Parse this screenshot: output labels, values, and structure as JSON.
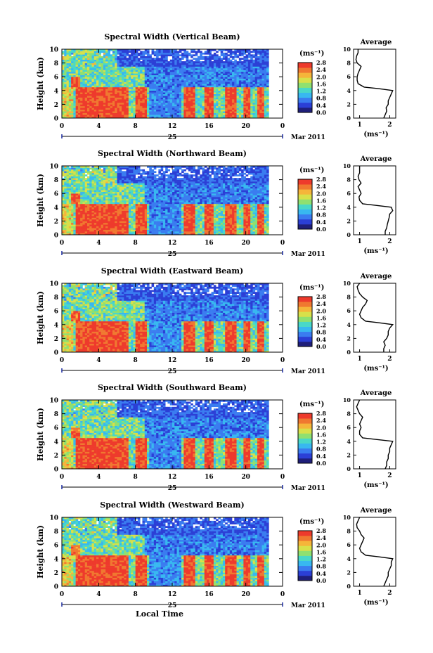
{
  "figure": {
    "xlabel": "Local Time",
    "date_label": "Mar 2011",
    "day_label": "25",
    "colorbar_unit": "(ms⁻¹)",
    "colorbar_ticks": [
      "0.0",
      "0.4",
      "0.8",
      "1.2",
      "1.6",
      "2.0",
      "2.4",
      "2.8"
    ],
    "colormap": [
      "#1f1f7a",
      "#2b3fd6",
      "#3a7cf0",
      "#38b8f0",
      "#49d8c8",
      "#8fe070",
      "#d8e04a",
      "#f5b53a",
      "#f07830",
      "#ee3a2c"
    ]
  },
  "chart_data": [
    {
      "type": "heatmap",
      "title": "Spectral Width (Vertical Beam)",
      "ylabel": "Height (km)",
      "x_ticks": [
        "0",
        "4",
        "8",
        "12",
        "16",
        "20",
        "0"
      ],
      "xlim": [
        0,
        24
      ],
      "y_ticks": [
        "0",
        "2",
        "4",
        "6",
        "8",
        "10"
      ],
      "ylim": [
        0,
        10
      ],
      "zlim": [
        0.0,
        2.8
      ],
      "profile": {
        "title": "Average",
        "xlabel": "(ms⁻¹)",
        "x_ticks": [
          "1",
          "2"
        ],
        "xlim": [
          0.8,
          2.2
        ],
        "height": [
          0,
          0.5,
          1,
          1.5,
          2,
          2.5,
          3,
          3.5,
          4,
          4.3,
          4.5,
          5,
          5.5,
          6,
          6.5,
          7,
          7.5,
          8,
          8.5,
          9,
          9.5,
          10
        ],
        "value": [
          1.8,
          1.85,
          1.9,
          1.88,
          1.95,
          1.95,
          2.0,
          2.05,
          2.1,
          1.6,
          1.15,
          0.95,
          0.92,
          0.92,
          0.95,
          1.0,
          1.05,
          0.92,
          0.88,
          0.9,
          0.95,
          0.95
        ]
      }
    },
    {
      "type": "heatmap",
      "title": "Spectral Width (Northward Beam)",
      "ylabel": "Height (km)",
      "x_ticks": [
        "0",
        "4",
        "8",
        "12",
        "16",
        "20",
        "0"
      ],
      "xlim": [
        0,
        24
      ],
      "y_ticks": [
        "0",
        "2",
        "4",
        "6",
        "8",
        "10"
      ],
      "ylim": [
        0,
        10
      ],
      "zlim": [
        0.0,
        2.8
      ],
      "profile": {
        "title": "Average",
        "xlabel": "(ms⁻¹)",
        "x_ticks": [
          "1",
          "2"
        ],
        "xlim": [
          0.8,
          2.2
        ],
        "height": [
          0,
          0.5,
          1,
          1.5,
          2,
          2.5,
          3,
          3.5,
          4,
          4.3,
          4.5,
          5,
          5.5,
          6,
          6.5,
          7,
          7.5,
          8,
          8.5,
          9,
          9.5,
          10
        ],
        "value": [
          1.85,
          1.85,
          1.9,
          1.92,
          1.95,
          1.98,
          2.0,
          2.1,
          2.05,
          1.5,
          1.1,
          1.0,
          0.98,
          1.05,
          1.0,
          0.95,
          1.05,
          0.98,
          0.95,
          1.0,
          1.0,
          1.0
        ]
      }
    },
    {
      "type": "heatmap",
      "title": "Spectral Width (Eastward Beam)",
      "ylabel": "Height (km)",
      "x_ticks": [
        "0",
        "4",
        "8",
        "12",
        "16",
        "20",
        "0"
      ],
      "xlim": [
        0,
        24
      ],
      "y_ticks": [
        "0",
        "2",
        "4",
        "6",
        "8",
        "10"
      ],
      "ylim": [
        0,
        10
      ],
      "zlim": [
        0.0,
        2.8
      ],
      "profile": {
        "title": "Average",
        "xlabel": "(ms⁻¹)",
        "x_ticks": [
          "1",
          "2"
        ],
        "xlim": [
          0.8,
          2.2
        ],
        "height": [
          0,
          0.5,
          1,
          1.5,
          2,
          2.5,
          3,
          3.5,
          4,
          4.3,
          4.5,
          5,
          5.5,
          6,
          6.5,
          7,
          7.5,
          8,
          8.5,
          9,
          9.5,
          10
        ],
        "value": [
          1.8,
          1.8,
          1.85,
          1.8,
          1.9,
          1.95,
          1.95,
          2.0,
          2.1,
          1.6,
          1.2,
          1.05,
          1.0,
          1.05,
          1.1,
          1.2,
          1.25,
          1.1,
          1.0,
          0.95,
          0.92,
          1.0
        ]
      }
    },
    {
      "type": "heatmap",
      "title": "Spectral Width (Southward Beam)",
      "ylabel": "Height (km)",
      "x_ticks": [
        "0",
        "4",
        "8",
        "12",
        "16",
        "20",
        "0"
      ],
      "xlim": [
        0,
        24
      ],
      "y_ticks": [
        "0",
        "2",
        "4",
        "6",
        "8",
        "10"
      ],
      "ylim": [
        0,
        10
      ],
      "zlim": [
        0.0,
        2.8
      ],
      "profile": {
        "title": "Average",
        "xlabel": "(ms⁻¹)",
        "x_ticks": [
          "1",
          "2"
        ],
        "xlim": [
          0.8,
          2.2
        ],
        "height": [
          0,
          0.5,
          1,
          1.5,
          2,
          2.5,
          3,
          3.5,
          4,
          4.3,
          4.5,
          5,
          5.5,
          6,
          6.5,
          7,
          7.5,
          8,
          8.5,
          9,
          9.5,
          10
        ],
        "value": [
          1.85,
          1.9,
          1.9,
          1.95,
          1.95,
          2.0,
          2.0,
          2.05,
          2.1,
          1.5,
          1.1,
          1.0,
          1.0,
          1.05,
          1.0,
          1.05,
          1.1,
          1.0,
          0.95,
          0.9,
          0.95,
          1.0
        ]
      }
    },
    {
      "type": "heatmap",
      "title": "Spectral Width (Westward Beam)",
      "ylabel": "Height (km)",
      "x_ticks": [
        "0",
        "4",
        "8",
        "12",
        "16",
        "20",
        "0"
      ],
      "xlim": [
        0,
        24
      ],
      "y_ticks": [
        "0",
        "2",
        "4",
        "6",
        "8",
        "10"
      ],
      "ylim": [
        0,
        10
      ],
      "zlim": [
        0.0,
        2.8
      ],
      "profile": {
        "title": "Average",
        "xlabel": "(ms⁻¹)",
        "x_ticks": [
          "1",
          "2"
        ],
        "xlim": [
          0.8,
          2.2
        ],
        "height": [
          0,
          0.5,
          1,
          1.5,
          2,
          2.5,
          3,
          3.5,
          4,
          4.3,
          4.5,
          5,
          5.5,
          6,
          6.5,
          7,
          7.5,
          8,
          8.5,
          9,
          9.5,
          10
        ],
        "value": [
          1.8,
          1.85,
          1.9,
          1.95,
          1.95,
          2.0,
          2.05,
          2.05,
          2.1,
          1.6,
          1.2,
          1.05,
          1.0,
          1.05,
          1.1,
          1.15,
          1.05,
          1.0,
          0.92,
          0.9,
          0.95,
          1.0
        ]
      }
    }
  ]
}
